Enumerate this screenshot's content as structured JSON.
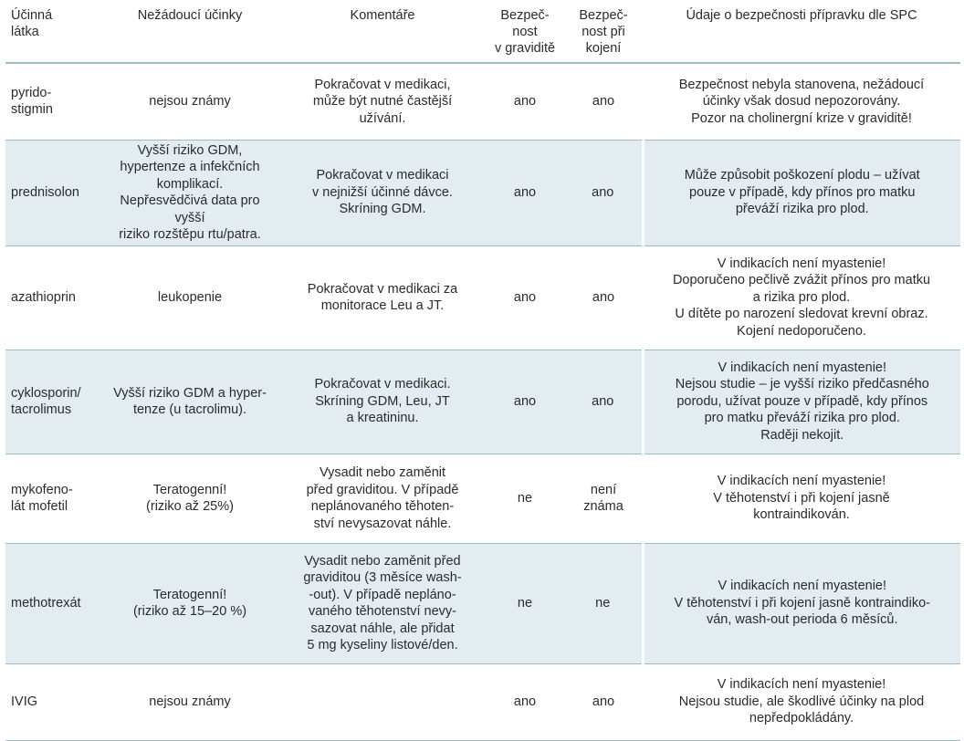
{
  "headers": [
    {
      "lines": [
        "Účinná",
        "látka"
      ]
    },
    {
      "lines": [
        "Nežádoucí účinky"
      ]
    },
    {
      "lines": [
        "Komentáře"
      ]
    },
    {
      "lines": [
        "Bezpeč-",
        "nost",
        "v graviditě"
      ]
    },
    {
      "lines": [
        "Bezpeč-",
        "nost při",
        "kojení"
      ]
    },
    {
      "lines": [
        "Údaje o bezpečnosti přípravku dle SPC"
      ]
    }
  ],
  "rows": [
    {
      "substance": [
        "pyrido-",
        "stigmin"
      ],
      "effects": [
        "nejsou známy"
      ],
      "comments": [
        "Pokračovat v medikaci,",
        "může být nutné častější",
        "užívání."
      ],
      "pregnancy": [
        "ano"
      ],
      "breastfeeding": [
        "ano"
      ],
      "spc": [
        "Bezpečnost nebyla stanovena, nežádoucí",
        "účinky však dosud nepozorovány.",
        "Pozor na cholinergní krize v graviditě!"
      ]
    },
    {
      "substance": [
        "prednisolon"
      ],
      "effects": [
        "Vyšší riziko GDM,",
        "hypertenze a infekčních",
        "komplikací.",
        "Nepřesvědčivá data pro vyšší",
        "riziko rozštěpu rtu/patra."
      ],
      "comments": [
        "Pokračovat v medikaci",
        "v nejnižší účinné dávce.",
        "Skríning GDM."
      ],
      "pregnancy": [
        "ano"
      ],
      "breastfeeding": [
        "ano"
      ],
      "spc": [
        "Může způsobit poškození plodu – užívat",
        "pouze v případě, kdy přínos pro matku",
        "převáží rizika pro plod."
      ]
    },
    {
      "substance": [
        "azathioprin"
      ],
      "effects": [
        "leukopenie"
      ],
      "comments": [
        "Pokračovat v medikaci za",
        "monitorace Leu a JT."
      ],
      "pregnancy": [
        "ano"
      ],
      "breastfeeding": [
        "ano"
      ],
      "spc": [
        "V indikacích není myastenie!",
        "Doporučeno pečlivě zvážit přínos pro matku",
        "a rizika pro plod.",
        "U dítěte po narození sledovat krevní obraz.",
        "Kojení nedoporučeno."
      ]
    },
    {
      "substance": [
        "cyklosporin/",
        "tacrolimus"
      ],
      "effects": [
        "Vyšší riziko GDM a hyper-",
        "tenze (u tacrolimu)."
      ],
      "comments": [
        "Pokračovat v medikaci.",
        "Skríning GDM, Leu, JT",
        "a kreatininu."
      ],
      "pregnancy": [
        "ano"
      ],
      "breastfeeding": [
        "ano"
      ],
      "spc": [
        "V indikacích není myastenie!",
        "Nejsou studie – je vyšší riziko předčasného",
        "porodu, užívat pouze v případě, kdy přínos",
        "pro matku převáží rizika pro plod.",
        "Raději nekojit."
      ]
    },
    {
      "substance": [
        "mykofeno-",
        "lát mofetil"
      ],
      "effects": [
        "Teratogenní!",
        "(riziko až 25%)"
      ],
      "comments": [
        "Vysadit nebo zaměnit",
        "před graviditou. V případě",
        "neplánovaného těhoten-",
        "ství nevysazovat náhle."
      ],
      "pregnancy": [
        "ne"
      ],
      "breastfeeding": [
        "není",
        "známa"
      ],
      "spc": [
        "V indikacích není myastenie!",
        "V těhotenství i při kojení jasně",
        "kontraindikován."
      ]
    },
    {
      "substance": [
        "methotrexát"
      ],
      "effects": [
        "Teratogenní!",
        "(riziko až 15–20 %)"
      ],
      "comments": [
        "Vysadit nebo zaměnit před",
        "graviditou (3 měsíce wash-",
        "-out). V případě nepláno-",
        "vaného těhotenství nevy-",
        "sazovat náhle, ale přidat",
        "5 mg kyseliny listové/den."
      ],
      "pregnancy": [
        "ne"
      ],
      "breastfeeding": [
        "ne"
      ],
      "spc": [
        "V indikacích není myastenie!",
        "V těhotenství i při kojení jasně kontraindiko-",
        "ván, wash-out perioda 6 měsíců."
      ]
    },
    {
      "substance": [
        "IVIG"
      ],
      "effects": [
        "nejsou známy"
      ],
      "comments": [],
      "pregnancy": [
        "ano"
      ],
      "breastfeeding": [
        "ano"
      ],
      "spc": [
        "V indikacích není myastenie!",
        "Nejsou studie, ale škodlivé účinky na plod",
        "nepředpokládány."
      ]
    }
  ]
}
